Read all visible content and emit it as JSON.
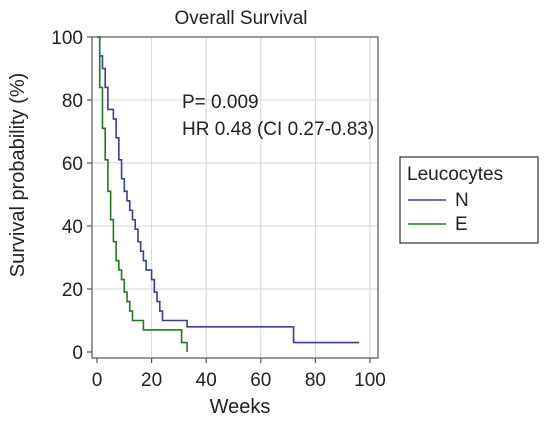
{
  "chart_data": {
    "type": "line",
    "step": true,
    "title": "Overall Survival",
    "xlabel": "Weeks",
    "ylabel": "Survival probability (%)",
    "xlim": [
      0,
      100
    ],
    "ylim": [
      0,
      100
    ],
    "xticks": [
      "0",
      "20",
      "40",
      "60",
      "80",
      "100"
    ],
    "yticks": [
      "0",
      "20",
      "40",
      "60",
      "80",
      "100"
    ],
    "grid": true,
    "legend": {
      "title": "Leucocytes",
      "placement": "right",
      "entries": [
        "N",
        "E"
      ]
    },
    "annotations": [
      "P= 0.009",
      "HR 0.48 (CI 0.27-0.83)"
    ],
    "colors": {
      "N": "#3b3ba8",
      "E": "#1f7a1f",
      "grid": "#d6d6d6",
      "axis": "#555555"
    },
    "series": [
      {
        "name": "N",
        "x": [
          0,
          1,
          2,
          3,
          4,
          5,
          6,
          7,
          8,
          9,
          10,
          11,
          12,
          13,
          14,
          15,
          16,
          17,
          18,
          19,
          20,
          21,
          22,
          23,
          24,
          26,
          28,
          33,
          64,
          72,
          96
        ],
        "y": [
          100,
          94,
          90,
          84,
          77,
          77,
          74,
          68,
          61,
          55,
          51,
          48,
          45,
          42,
          39,
          35,
          32,
          29,
          26,
          26,
          23,
          19,
          16,
          13,
          10,
          10,
          10,
          8,
          8,
          3,
          3
        ]
      },
      {
        "name": "E",
        "x": [
          0,
          1,
          2,
          3,
          4,
          5,
          6,
          7,
          8,
          9,
          10,
          11,
          12,
          13,
          14,
          17,
          18,
          20,
          31,
          33
        ],
        "y": [
          100,
          84,
          71,
          61,
          51,
          42,
          35,
          29,
          26,
          23,
          19,
          16,
          13,
          10,
          10,
          7,
          7,
          7,
          3,
          0
        ]
      }
    ]
  }
}
